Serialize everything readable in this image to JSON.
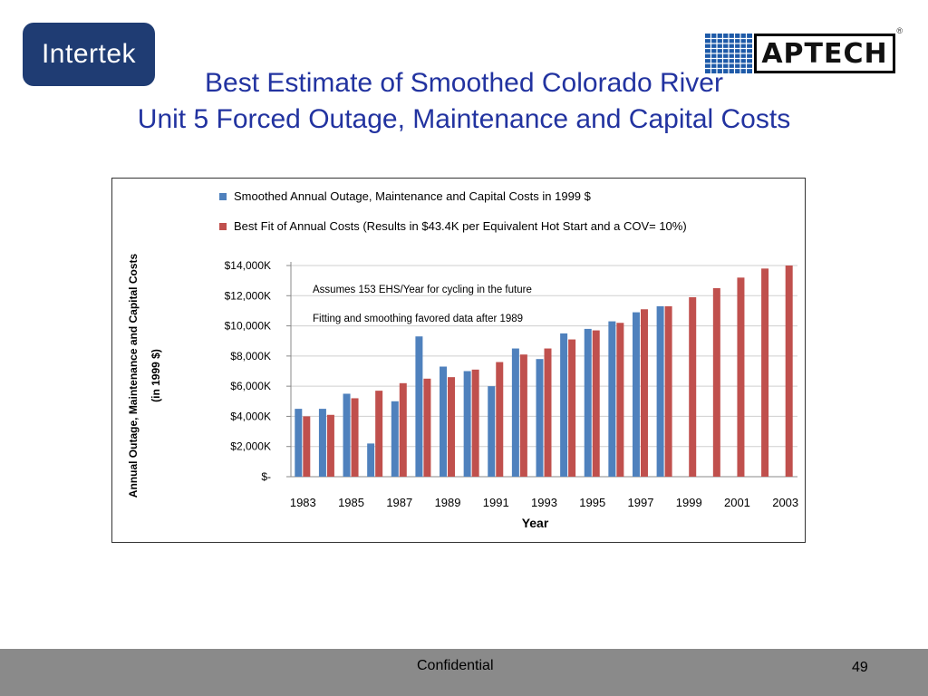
{
  "logos": {
    "left_text": "Intertek",
    "right_text": "APTECH",
    "right_reg": "®"
  },
  "title": {
    "line1": "Best Estimate of Smoothed Colorado River",
    "line2": "Unit 5 Forced Outage, Maintenance and Capital Costs"
  },
  "footer": {
    "label": "Confidential",
    "page": "49"
  },
  "colors": {
    "title": "#2233a0",
    "series_blue": "#4f81bd",
    "series_red": "#c0504d",
    "footer_bg": "#8a8a8a"
  },
  "chart_data": {
    "type": "bar",
    "xlabel": "Year",
    "ylabel": "Annual Outage, Maintenance and Capital Costs (in 1999 $)",
    "ylabel_lines": [
      "Annual Outage, Maintenance and Capital Costs",
      "(in 1999 $)"
    ],
    "ylim": [
      0,
      14000
    ],
    "yticks": [
      0,
      2000,
      4000,
      6000,
      8000,
      10000,
      12000,
      14000
    ],
    "ytick_labels": [
      "$-",
      "$2,000K",
      "$4,000K",
      "$6,000K",
      "$8,000K",
      "$10,000K",
      "$12,000K",
      "$14,000K"
    ],
    "categories": [
      "1983",
      "1984",
      "1985",
      "1986",
      "1987",
      "1988",
      "1989",
      "1990",
      "1991",
      "1992",
      "1993",
      "1994",
      "1995",
      "1996",
      "1997",
      "1998",
      "1999",
      "2000",
      "2001",
      "2002",
      "2003"
    ],
    "xtick_labels": [
      "1983",
      "1985",
      "1987",
      "1989",
      "1991",
      "1993",
      "1995",
      "1997",
      "1999",
      "2001",
      "2003"
    ],
    "legend_position": "top",
    "grid": true,
    "annotations": [
      "Assumes 153 EHS/Year for cycling in the future",
      "Fitting and smoothing favored data after 1989"
    ],
    "series": [
      {
        "name": "Smoothed Annual Outage, Maintenance and Capital Costs in 1999 $",
        "color": "#4f81bd",
        "values": [
          4500,
          4500,
          5500,
          2200,
          5000,
          9300,
          7300,
          7000,
          6000,
          8500,
          7800,
          9500,
          9800,
          10300,
          10900,
          11300,
          null,
          null,
          null,
          null,
          null
        ]
      },
      {
        "name": "Best Fit of Annual Costs (Results in $43.4K per Equivalent Hot Start and a COV= 10%)",
        "color": "#c0504d",
        "values": [
          4000,
          4100,
          5200,
          5700,
          6200,
          6500,
          6600,
          7100,
          7600,
          8100,
          8500,
          9100,
          9700,
          10200,
          11100,
          11300,
          11900,
          12500,
          13200,
          13800,
          14000
        ]
      }
    ]
  }
}
